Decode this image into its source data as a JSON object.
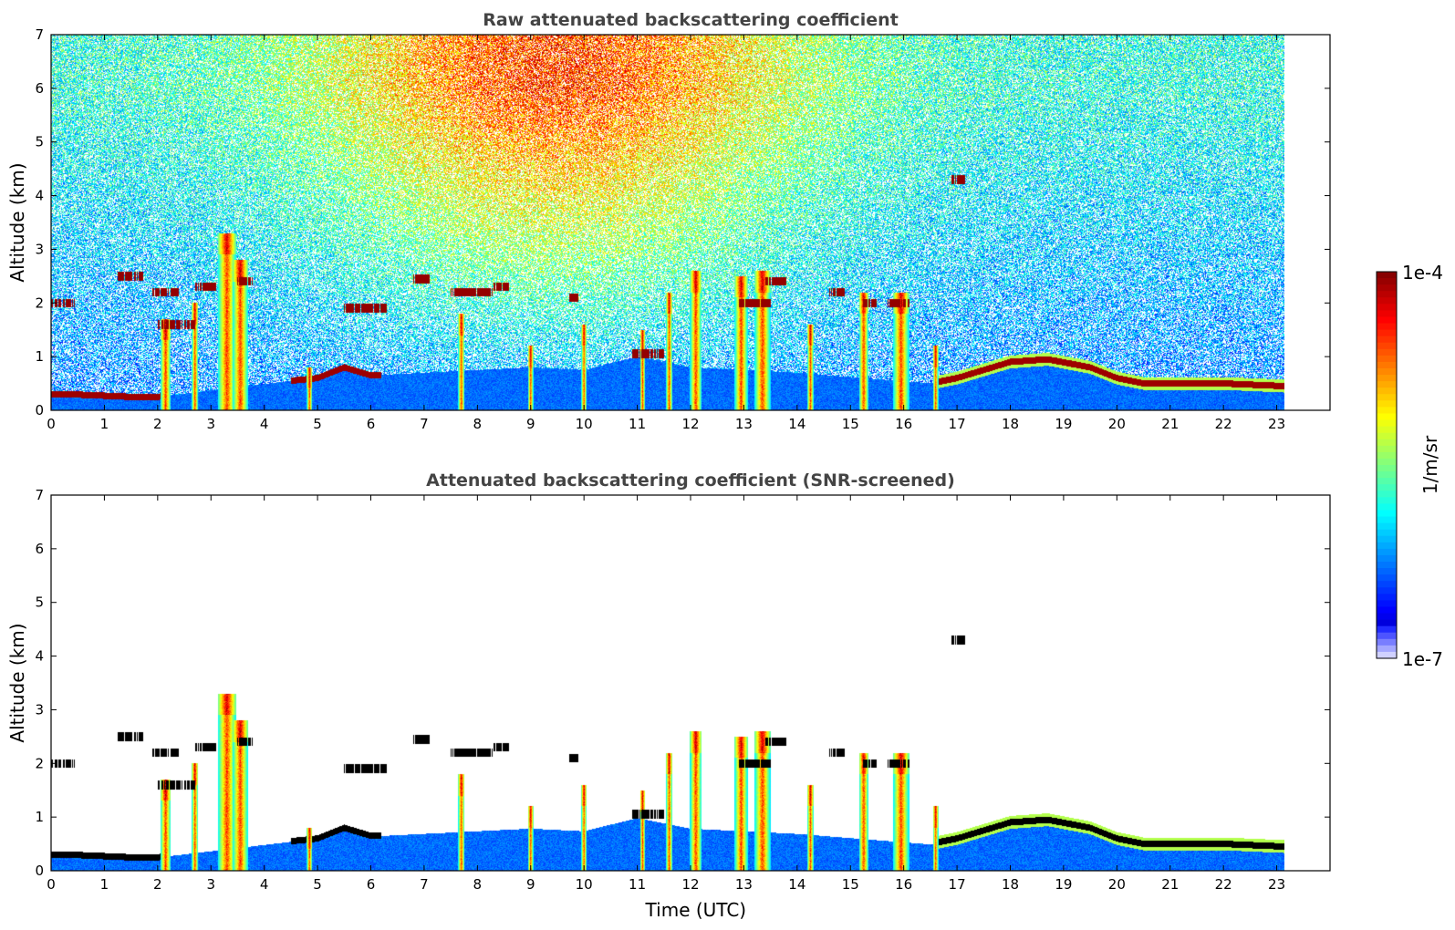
{
  "chart_data": [
    {
      "type": "heatmap",
      "title": "Raw attenuated backscattering coefficient",
      "xlabel": "",
      "ylabel": "Altitude (km)",
      "xlim": [
        0,
        24
      ],
      "ylim": [
        0,
        7
      ],
      "xticks": [
        "0",
        "1",
        "2",
        "3",
        "4",
        "5",
        "6",
        "7",
        "8",
        "9",
        "10",
        "11",
        "12",
        "13",
        "14",
        "15",
        "16",
        "17",
        "18",
        "19",
        "20",
        "21",
        "22",
        "23"
      ],
      "yticks": [
        "0",
        "1",
        "2",
        "3",
        "4",
        "5",
        "6",
        "7"
      ],
      "data_end_time": 23.15,
      "screened": false
    },
    {
      "type": "heatmap",
      "title": "Attenuated backscattering coefficient (SNR-screened)",
      "xlabel": "Time (UTC)",
      "ylabel": "Altitude (km)",
      "xlim": [
        0,
        24
      ],
      "ylim": [
        0,
        7
      ],
      "xticks": [
        "0",
        "1",
        "2",
        "3",
        "4",
        "5",
        "6",
        "7",
        "8",
        "9",
        "10",
        "11",
        "12",
        "13",
        "14",
        "15",
        "16",
        "17",
        "18",
        "19",
        "20",
        "21",
        "22",
        "23"
      ],
      "yticks": [
        "0",
        "1",
        "2",
        "3",
        "4",
        "5",
        "6",
        "7"
      ],
      "data_end_time": 23.15,
      "screened": true
    }
  ],
  "colorbar": {
    "max_label": "1e-4",
    "min_label": "1e-7",
    "unit_label": "1/m/sr",
    "scale": "log",
    "colormap": "jet"
  },
  "features": {
    "boundary_layer_top_km": [
      [
        0.3,
        0.3
      ],
      [
        0.8,
        0.28
      ],
      [
        1.5,
        0.25
      ],
      [
        2.0,
        0.25
      ],
      [
        4.5,
        0.55
      ],
      [
        5.0,
        0.6
      ],
      [
        5.5,
        0.8
      ],
      [
        6.0,
        0.65
      ],
      [
        7.0,
        0.7
      ],
      [
        8.0,
        0.75
      ],
      [
        9.0,
        0.8
      ],
      [
        10.0,
        0.75
      ],
      [
        11.0,
        1.0
      ],
      [
        11.5,
        0.9
      ],
      [
        12.0,
        0.8
      ],
      [
        14.0,
        0.7
      ],
      [
        16.5,
        0.5
      ],
      [
        17.0,
        0.6
      ],
      [
        18.0,
        0.9
      ],
      [
        18.7,
        0.95
      ],
      [
        19.5,
        0.8
      ],
      [
        20.0,
        0.6
      ],
      [
        20.5,
        0.5
      ],
      [
        21.0,
        0.5
      ],
      [
        22.0,
        0.5
      ],
      [
        23.15,
        0.45
      ]
    ],
    "rain_columns": [
      {
        "t": 2.15,
        "top": 1.7,
        "w": 0.2
      },
      {
        "t": 2.7,
        "top": 2.0,
        "w": 0.12
      },
      {
        "t": 3.3,
        "top": 3.3,
        "w": 0.35
      },
      {
        "t": 3.55,
        "top": 2.8,
        "w": 0.3
      },
      {
        "t": 11.1,
        "top": 1.5,
        "w": 0.1
      },
      {
        "t": 11.6,
        "top": 2.2,
        "w": 0.12
      },
      {
        "t": 12.1,
        "top": 2.6,
        "w": 0.22
      },
      {
        "t": 12.95,
        "top": 2.5,
        "w": 0.25
      },
      {
        "t": 13.35,
        "top": 2.6,
        "w": 0.3
      },
      {
        "t": 14.25,
        "top": 1.6,
        "w": 0.12
      },
      {
        "t": 15.25,
        "top": 2.2,
        "w": 0.18
      },
      {
        "t": 15.95,
        "top": 2.2,
        "w": 0.3
      },
      {
        "t": 16.6,
        "top": 1.2,
        "w": 0.1
      },
      {
        "t": 4.85,
        "top": 0.8,
        "w": 0.1
      },
      {
        "t": 7.7,
        "top": 1.8,
        "w": 0.12
      },
      {
        "t": 9.0,
        "top": 1.2,
        "w": 0.1
      },
      {
        "t": 10.0,
        "top": 1.6,
        "w": 0.1
      }
    ],
    "cloud_layers": [
      {
        "t0": 0.0,
        "t1": 0.45,
        "z": 2.0
      },
      {
        "t0": 1.25,
        "t1": 1.75,
        "z": 2.5
      },
      {
        "t0": 1.9,
        "t1": 2.4,
        "z": 2.2
      },
      {
        "t0": 2.7,
        "t1": 3.1,
        "z": 2.3
      },
      {
        "t0": 2.0,
        "t1": 2.7,
        "z": 1.6
      },
      {
        "t0": 3.5,
        "t1": 3.8,
        "z": 2.4
      },
      {
        "t0": 5.5,
        "t1": 6.3,
        "z": 1.9
      },
      {
        "t0": 6.8,
        "t1": 7.1,
        "z": 2.45
      },
      {
        "t0": 7.5,
        "t1": 8.3,
        "z": 2.2
      },
      {
        "t0": 8.3,
        "t1": 8.6,
        "z": 2.3
      },
      {
        "t0": 9.7,
        "t1": 9.9,
        "z": 2.1
      },
      {
        "t0": 10.9,
        "t1": 11.5,
        "z": 1.05
      },
      {
        "t0": 12.9,
        "t1": 13.5,
        "z": 2.0
      },
      {
        "t0": 13.4,
        "t1": 13.8,
        "z": 2.4
      },
      {
        "t0": 14.6,
        "t1": 14.9,
        "z": 2.2
      },
      {
        "t0": 15.2,
        "t1": 15.5,
        "z": 2.0
      },
      {
        "t0": 16.9,
        "t1": 17.15,
        "z": 4.3
      },
      {
        "t0": 15.7,
        "t1": 16.1,
        "z": 2.0
      }
    ]
  }
}
